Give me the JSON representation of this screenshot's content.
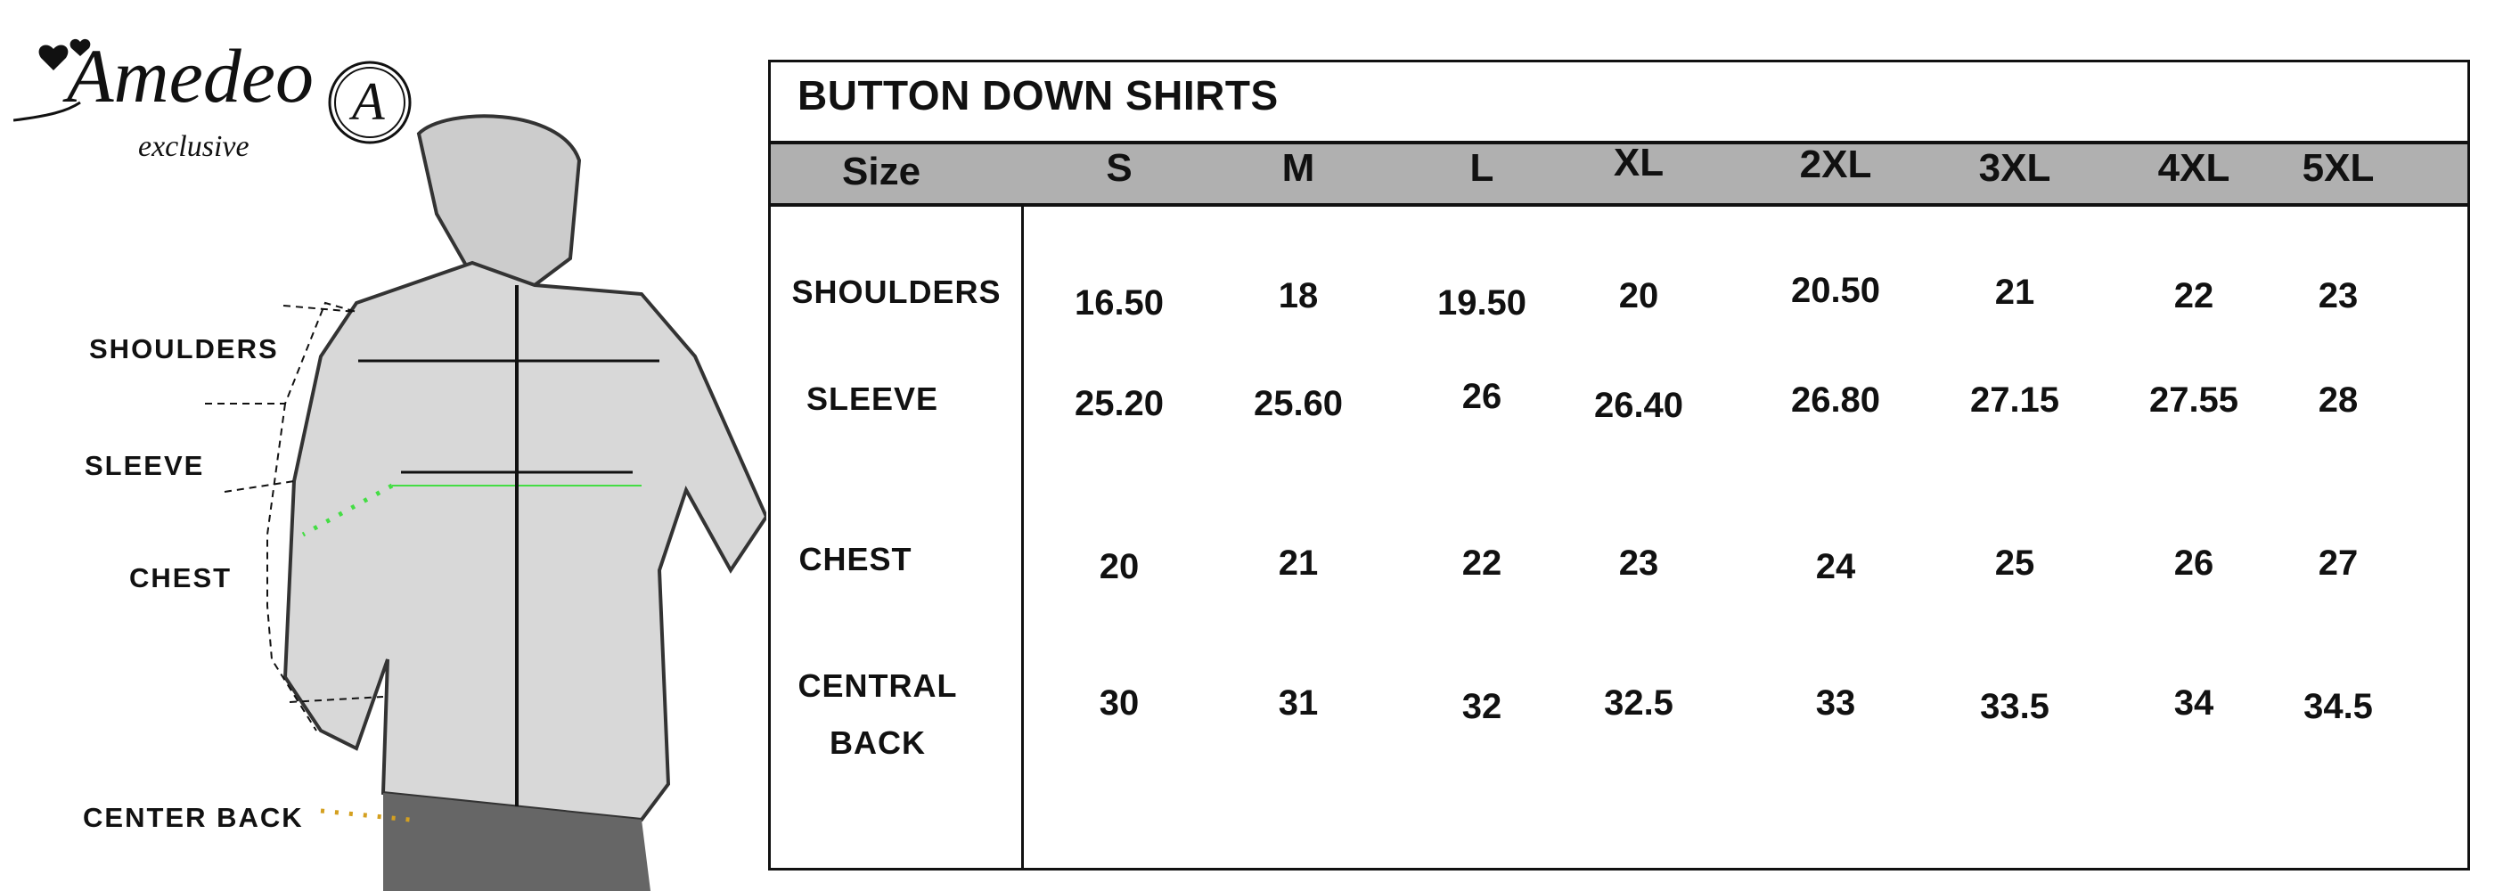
{
  "brand": {
    "name": "Amedeo",
    "tagline": "exclusive",
    "monogram": "A"
  },
  "diagram_labels": {
    "shoulders": "SHOULDERS",
    "sleeve": "SLEEVE",
    "chest": "CHEST",
    "center_back": "CENTER BACK"
  },
  "table": {
    "title": "BUTTON DOWN SHIRTS",
    "header_label": "Size",
    "sizes": [
      "S",
      "M",
      "L",
      "XL",
      "2XL",
      "3XL",
      "4XL",
      "5XL"
    ],
    "rows": [
      {
        "label": "SHOULDERS",
        "values": [
          "16.50",
          "18",
          "19.50",
          "20",
          "20.50",
          "21",
          "22",
          "23"
        ]
      },
      {
        "label": "SLEEVE",
        "values": [
          "25.20",
          "25.60",
          "26",
          "26.40",
          "26.80",
          "27.15",
          "27.55",
          "28"
        ]
      },
      {
        "label": "CHEST",
        "values": [
          "20",
          "21",
          "22",
          "23",
          "24",
          "25",
          "26",
          "27"
        ]
      },
      {
        "label_line1": "CENTRAL",
        "label_line2": "BACK",
        "values": [
          "30",
          "31",
          "32",
          "32.5",
          "33",
          "33.5",
          "34",
          "34.5"
        ]
      }
    ]
  },
  "colors": {
    "header_bg": "#b0b0b0",
    "chest_line": "#44dd44",
    "back_dots": "#d4a020"
  }
}
